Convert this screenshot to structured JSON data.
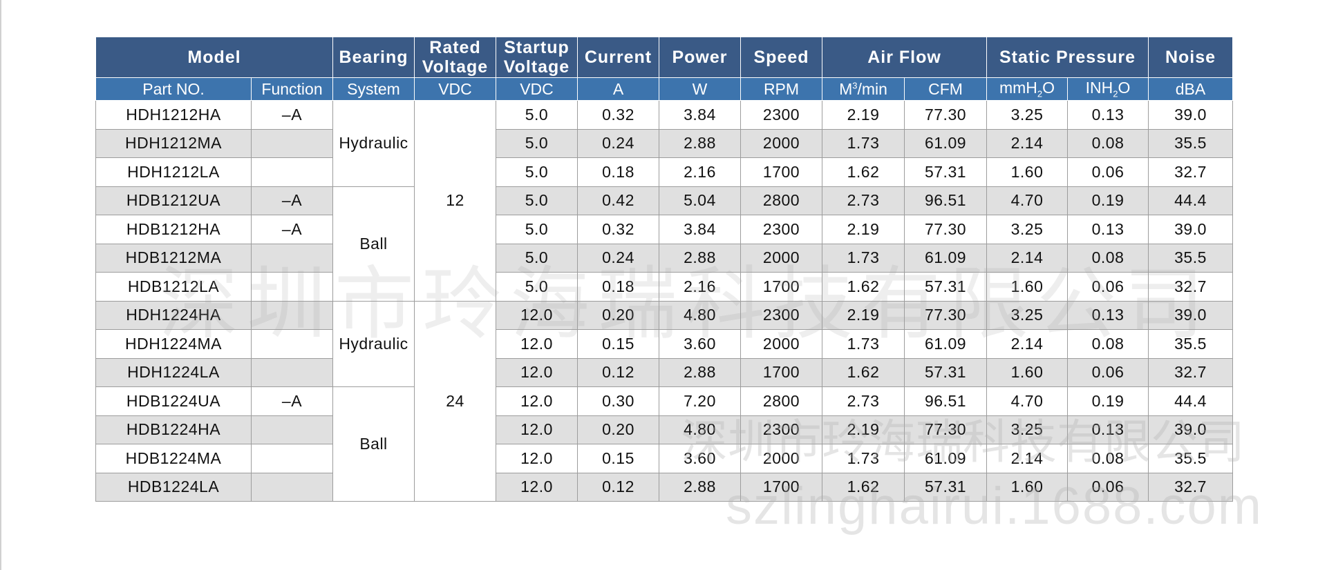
{
  "header_top": {
    "model": "Model",
    "bearing": "Bearing",
    "rated_voltage_1": "Rated",
    "rated_voltage_2": "Voltage",
    "startup_voltage_1": "Startup",
    "startup_voltage_2": "Voltage",
    "current": "Current",
    "power": "Power",
    "speed": "Speed",
    "air_flow": "Air Flow",
    "static_pressure": "Static Pressure",
    "noise": "Noise"
  },
  "header_units": {
    "part_no": "Part NO.",
    "function": "Function",
    "system": "System",
    "rated_vdc": "VDC",
    "startup_vdc": "VDC",
    "amp": "A",
    "watt": "W",
    "rpm": "RPM",
    "m3_base": "M",
    "m3_sup": "3",
    "m3_tail": "/min",
    "cfm": "CFM",
    "mmh2o_pre": "mmH",
    "mmh2o_sub": "2",
    "mmh2o_post": "O",
    "inh2o_pre": "INH",
    "inh2o_sub": "2",
    "inh2o_post": "O",
    "dba": "dBA"
  },
  "groups": {
    "bearing_1": "Hydraulic",
    "bearing_2": "Ball",
    "bearing_3": "Hydraulic",
    "bearing_4": "Ball",
    "rated_12": "12",
    "rated_24": "24"
  },
  "rows": [
    {
      "part": "HDH1212HA",
      "func": "–A",
      "startup": "5.0",
      "current": "0.32",
      "power": "3.84",
      "speed": "2300",
      "m3": "2.19",
      "cfm": "77.30",
      "mm": "3.25",
      "inch": "0.13",
      "noise": "39.0"
    },
    {
      "part": "HDH1212MA",
      "func": "",
      "startup": "5.0",
      "current": "0.24",
      "power": "2.88",
      "speed": "2000",
      "m3": "1.73",
      "cfm": "61.09",
      "mm": "2.14",
      "inch": "0.08",
      "noise": "35.5"
    },
    {
      "part": "HDH1212LA",
      "func": "",
      "startup": "5.0",
      "current": "0.18",
      "power": "2.16",
      "speed": "1700",
      "m3": "1.62",
      "cfm": "57.31",
      "mm": "1.60",
      "inch": "0.06",
      "noise": "32.7"
    },
    {
      "part": "HDB1212UA",
      "func": "–A",
      "startup": "5.0",
      "current": "0.42",
      "power": "5.04",
      "speed": "2800",
      "m3": "2.73",
      "cfm": "96.51",
      "mm": "4.70",
      "inch": "0.19",
      "noise": "44.4"
    },
    {
      "part": "HDB1212HA",
      "func": "–A",
      "startup": "5.0",
      "current": "0.32",
      "power": "3.84",
      "speed": "2300",
      "m3": "2.19",
      "cfm": "77.30",
      "mm": "3.25",
      "inch": "0.13",
      "noise": "39.0"
    },
    {
      "part": "HDB1212MA",
      "func": "",
      "startup": "5.0",
      "current": "0.24",
      "power": "2.88",
      "speed": "2000",
      "m3": "1.73",
      "cfm": "61.09",
      "mm": "2.14",
      "inch": "0.08",
      "noise": "35.5"
    },
    {
      "part": "HDB1212LA",
      "func": "",
      "startup": "5.0",
      "current": "0.18",
      "power": "2.16",
      "speed": "1700",
      "m3": "1.62",
      "cfm": "57.31",
      "mm": "1.60",
      "inch": "0.06",
      "noise": "32.7"
    },
    {
      "part": "HDH1224HA",
      "func": "",
      "startup": "12.0",
      "current": "0.20",
      "power": "4.80",
      "speed": "2300",
      "m3": "2.19",
      "cfm": "77.30",
      "mm": "3.25",
      "inch": "0.13",
      "noise": "39.0"
    },
    {
      "part": "HDH1224MA",
      "func": "",
      "startup": "12.0",
      "current": "0.15",
      "power": "3.60",
      "speed": "2000",
      "m3": "1.73",
      "cfm": "61.09",
      "mm": "2.14",
      "inch": "0.08",
      "noise": "35.5"
    },
    {
      "part": "HDH1224LA",
      "func": "",
      "startup": "12.0",
      "current": "0.12",
      "power": "2.88",
      "speed": "1700",
      "m3": "1.62",
      "cfm": "57.31",
      "mm": "1.60",
      "inch": "0.06",
      "noise": "32.7"
    },
    {
      "part": "HDB1224UA",
      "func": "–A",
      "startup": "12.0",
      "current": "0.30",
      "power": "7.20",
      "speed": "2800",
      "m3": "2.73",
      "cfm": "96.51",
      "mm": "4.70",
      "inch": "0.19",
      "noise": "44.4"
    },
    {
      "part": "HDB1224HA",
      "func": "",
      "startup": "12.0",
      "current": "0.20",
      "power": "4.80",
      "speed": "2300",
      "m3": "2.19",
      "cfm": "77.30",
      "mm": "3.25",
      "inch": "0.13",
      "noise": "39.0"
    },
    {
      "part": "HDB1224MA",
      "func": "",
      "startup": "12.0",
      "current": "0.15",
      "power": "3.60",
      "speed": "2000",
      "m3": "1.73",
      "cfm": "61.09",
      "mm": "2.14",
      "inch": "0.08",
      "noise": "35.5"
    },
    {
      "part": "HDB1224LA",
      "func": "",
      "startup": "12.0",
      "current": "0.12",
      "power": "2.88",
      "speed": "1700",
      "m3": "1.62",
      "cfm": "57.31",
      "mm": "1.60",
      "inch": "0.06",
      "noise": "32.7"
    }
  ],
  "watermarks": {
    "company_large": "深圳市玲海瑞科技有限公司",
    "company_small": "深圳市玲海瑞科技有限公司",
    "site": "szlinghairui.1688.com"
  }
}
